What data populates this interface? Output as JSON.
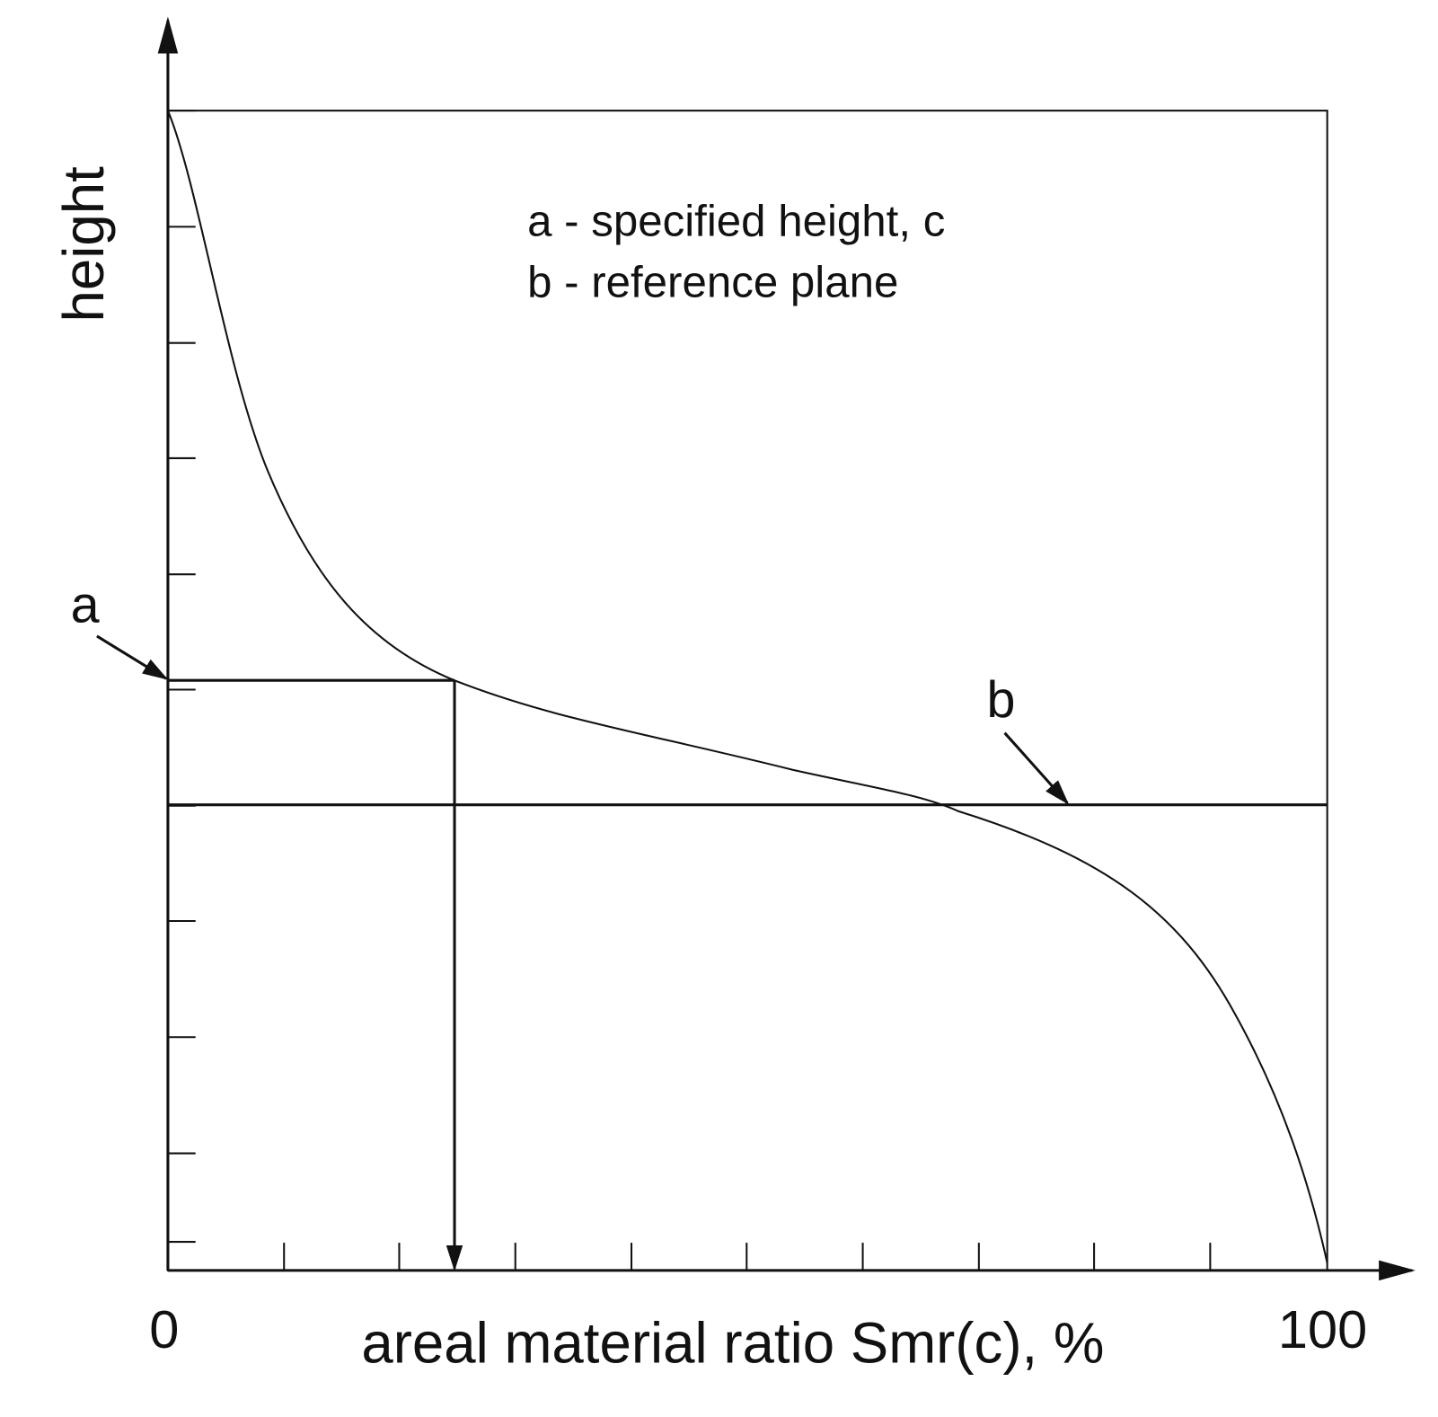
{
  "axes": {
    "y_label": "height",
    "x_label": "areal material ratio Smr(c), %",
    "x_start": "0",
    "x_end": "100"
  },
  "legend": [
    "a - specified height, c",
    "b - reference plane"
  ],
  "callouts": [
    "a",
    "b"
  ]
}
